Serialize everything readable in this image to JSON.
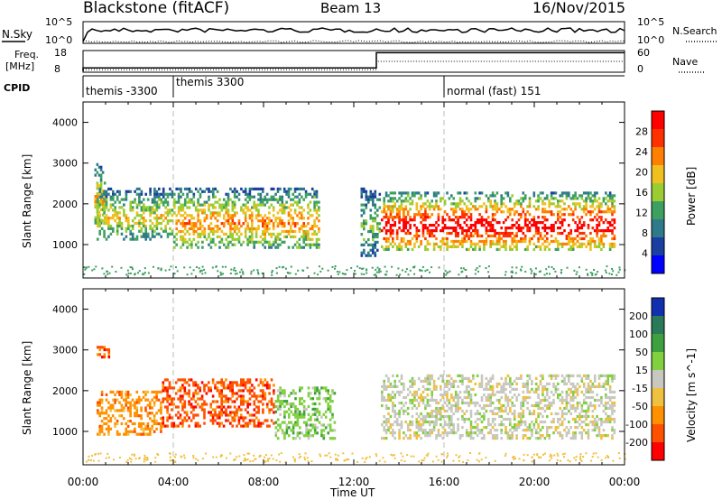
{
  "header": {
    "title": "Blackstone (fitACF)",
    "beam": "Beam 13",
    "date": "16/Nov/2015"
  },
  "top_panels": {
    "nsky_label": "N.Sky",
    "nsky_top": "10^5",
    "nsky_bottom": "10^0",
    "nsearch_top": "10^5",
    "nsearch_bottom": "10^0",
    "nsearch_label": "N.Search",
    "freq_label_1": "Freq.",
    "freq_label_2": "[MHz]",
    "freq_top": "18",
    "freq_bottom": "8",
    "nave_top": "60",
    "nave_bottom": "0",
    "nave_label": "Nave",
    "cpid_label": "CPID",
    "cpid_segments": [
      {
        "label": "themis -3300",
        "start_hour": 0.0
      },
      {
        "label": "themis 3300",
        "start_hour": 4.0
      },
      {
        "label": "normal (fast) 151",
        "start_hour": 16.0
      }
    ],
    "freq_step_hour": 13.0,
    "freq_mhz_before": 10,
    "freq_mhz_after": 17,
    "nave_before": 7,
    "nave_after": 30
  },
  "chart_data": [
    {
      "type": "heatmap",
      "title": "",
      "xlabel": "Time UT",
      "ylabel": "Slant Range [km]",
      "colorbar_label": "Power [dB]",
      "x_ticks": [
        "00:00",
        "04:00",
        "08:00",
        "12:00",
        "16:00",
        "20:00",
        "00:00"
      ],
      "x_range_hours": [
        0,
        24
      ],
      "y_ticks": [
        1000,
        2000,
        3000,
        4000
      ],
      "y_range_km": [
        180,
        4500
      ],
      "colorbar_ticks": [
        4,
        8,
        12,
        16,
        20,
        24,
        28
      ],
      "colorbar_range": [
        0,
        32
      ],
      "colorbar_colors": [
        "#0000ff",
        "#1a3fa0",
        "#2f7a8a",
        "#3ea060",
        "#9acd32",
        "#f0c020",
        "#ff8000",
        "#ff3000",
        "#ff0000"
      ],
      "echo_regions": [
        {
          "start_hour": 0.5,
          "end_hour": 1.0,
          "range_top": 3000,
          "range_bottom": 1500,
          "power": 18
        },
        {
          "start_hour": 0.6,
          "end_hour": 4.0,
          "range_top": 2400,
          "range_bottom": 1100,
          "power": 16
        },
        {
          "start_hour": 4.0,
          "end_hour": 10.5,
          "range_top": 2400,
          "range_bottom": 900,
          "power": 20
        },
        {
          "start_hour": 12.3,
          "end_hour": 13.2,
          "range_top": 2400,
          "range_bottom": 700,
          "power": 12
        },
        {
          "start_hour": 13.2,
          "end_hour": 23.6,
          "range_top": 2300,
          "range_bottom": 850,
          "power": 28
        }
      ]
    },
    {
      "type": "heatmap",
      "title": "",
      "xlabel": "Time UT",
      "ylabel": "Slant Range [km]",
      "colorbar_label": "Velocity [m s^-1]",
      "x_ticks": [
        "00:00",
        "04:00",
        "08:00",
        "12:00",
        "16:00",
        "20:00",
        "00:00"
      ],
      "x_range_hours": [
        0,
        24
      ],
      "y_ticks": [
        1000,
        2000,
        3000,
        4000
      ],
      "y_range_km": [
        180,
        4500
      ],
      "colorbar_ticks": [
        200,
        100,
        50,
        15,
        -15,
        -50,
        -100,
        -200
      ],
      "colorbar_colors": [
        "#1030b0",
        "#2a7a5a",
        "#3fa03f",
        "#80d040",
        "#c8c8c0",
        "#f0c040",
        "#ff9000",
        "#ff5000",
        "#ff0000"
      ],
      "echo_regions": [
        {
          "start_hour": 0.6,
          "end_hour": 1.2,
          "range_top": 3100,
          "range_bottom": 2800,
          "velocity": -200
        },
        {
          "start_hour": 0.6,
          "end_hour": 3.5,
          "range_top": 2000,
          "range_bottom": 900,
          "velocity": -70
        },
        {
          "start_hour": 3.5,
          "end_hour": 8.5,
          "range_top": 2300,
          "range_bottom": 1100,
          "velocity": -150
        },
        {
          "start_hour": 8.5,
          "end_hour": 11.2,
          "range_top": 2100,
          "range_bottom": 800,
          "velocity": 30
        },
        {
          "start_hour": 13.2,
          "end_hour": 23.6,
          "range_top": 2400,
          "range_bottom": 800,
          "velocity": 0
        }
      ]
    }
  ]
}
